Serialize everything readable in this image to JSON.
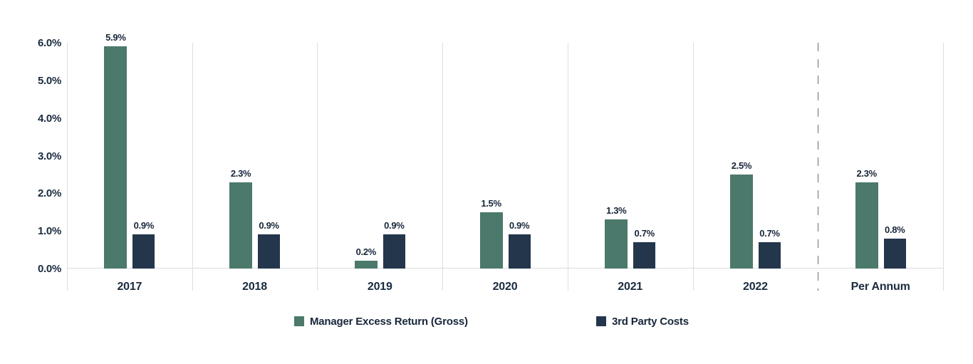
{
  "colors": {
    "series_green": "#4b796b",
    "series_navy": "#24364c",
    "label_text": "#17263a",
    "axis_text": "#1a2b3e",
    "gridline": "#dedede",
    "divider_dashed": "#6e6e6e",
    "background": "#ffffff"
  },
  "chart_data": {
    "type": "bar",
    "title": "",
    "xlabel": "",
    "ylabel": "",
    "categories": [
      "2017",
      "2018",
      "2019",
      "2020",
      "2021",
      "2022",
      "Per Annum"
    ],
    "series": [
      {
        "name": "Manager Excess Return (Gross)",
        "color": "#4b796b",
        "values": [
          5.9,
          2.3,
          0.2,
          1.5,
          1.3,
          2.5,
          2.3
        ],
        "data_labels": [
          "5.9%",
          "2.3%",
          "0.2%",
          "1.5%",
          "1.3%",
          "2.5%",
          "2.3%"
        ]
      },
      {
        "name": "3rd Party Costs",
        "color": "#24364c",
        "values": [
          0.9,
          0.9,
          0.9,
          0.9,
          0.7,
          0.7,
          0.8
        ],
        "data_labels": [
          "0.9%",
          "0.9%",
          "0.9%",
          "0.9%",
          "0.7%",
          "0.7%",
          "0.8%"
        ]
      }
    ],
    "ylim": [
      0,
      6
    ],
    "yticks": [
      "6.0%",
      "5.0%",
      "4.0%",
      "3.0%",
      "2.0%",
      "1.0%",
      "0.0%"
    ],
    "ytick_values": [
      6,
      5,
      4,
      3,
      2,
      1,
      0
    ],
    "grid": "vertical-group-separators",
    "divider_before_category": "Per Annum",
    "divider_style": "dashed",
    "legend_position": "bottom",
    "value_suffix": "%"
  },
  "legend": {
    "items": [
      {
        "label": "Manager Excess Return (Gross)",
        "color": "#4b796b"
      },
      {
        "label": "3rd Party Costs",
        "color": "#24364c"
      }
    ]
  }
}
